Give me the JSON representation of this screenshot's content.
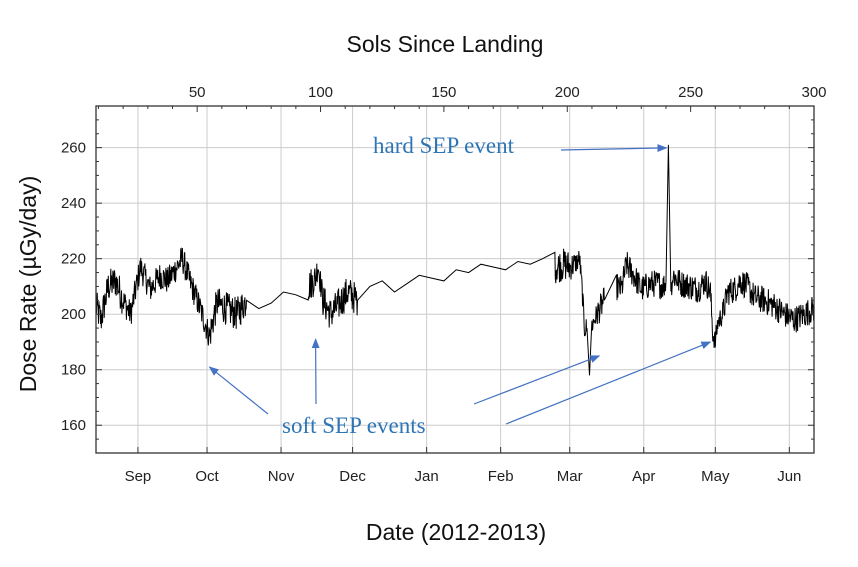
{
  "chart_data": {
    "type": "line",
    "title": "",
    "top_axis_label": "Sols Since Landing",
    "xlabel": "Date (2012-2013)",
    "ylabel": "Dose Rate (µGy/day)",
    "sol_range": [
      9,
      300
    ],
    "ylim": [
      150,
      275
    ],
    "y_ticks": [
      160,
      180,
      200,
      220,
      240,
      260
    ],
    "sol_ticks": [
      50,
      100,
      150,
      200,
      250,
      300
    ],
    "month_labels": [
      {
        "label": "Sep",
        "sol": 26
      },
      {
        "label": "Oct",
        "sol": 54
      },
      {
        "label": "Nov",
        "sol": 84
      },
      {
        "label": "Dec",
        "sol": 113
      },
      {
        "label": "Jan",
        "sol": 143
      },
      {
        "label": "Feb",
        "sol": 173
      },
      {
        "label": "Mar",
        "sol": 201
      },
      {
        "label": "Apr",
        "sol": 231
      },
      {
        "label": "May",
        "sol": 260
      },
      {
        "label": "Jun",
        "sol": 290
      }
    ],
    "grid": true,
    "series": [
      {
        "sol": [
          9,
          11,
          14,
          17,
          20,
          23,
          27,
          31,
          35,
          38,
          41,
          44,
          47,
          50,
          52,
          55,
          58,
          62,
          66,
          70,
          75,
          80,
          85,
          90,
          95,
          98,
          99,
          101,
          104,
          107,
          111,
          115,
          120,
          125,
          130,
          135,
          140,
          145,
          150,
          155,
          160,
          165,
          170,
          175,
          180,
          185,
          190,
          195,
          199,
          201,
          203,
          204,
          205,
          206,
          207,
          208,
          209,
          210,
          212,
          215,
          220,
          222,
          224,
          227,
          230,
          234,
          237,
          239,
          240,
          241,
          242,
          243,
          246,
          250,
          253,
          256,
          258,
          259,
          260,
          261,
          263,
          265,
          268,
          270,
          273,
          276,
          280,
          284,
          288,
          292,
          296,
          300
        ],
        "dose": [
          203,
          198,
          210,
          212,
          205,
          200,
          217,
          209,
          214,
          212,
          216,
          220,
          212,
          205,
          200,
          192,
          204,
          202,
          200,
          205,
          202,
          204,
          208,
          207,
          210,
          213,
          218,
          205,
          200,
          203,
          208,
          205,
          210,
          212,
          208,
          211,
          214,
          213,
          212,
          216,
          215,
          218,
          217,
          216,
          219,
          218,
          220,
          217,
          218,
          217,
          218,
          219,
          220,
          209,
          195,
          195,
          178,
          196,
          200,
          205,
          210,
          209,
          218,
          214,
          209,
          211,
          211,
          210,
          212,
          261,
          209,
          214,
          211,
          210,
          209,
          212,
          208,
          193,
          190,
          197,
          200,
          208,
          209,
          212,
          210,
          206,
          205,
          203,
          200,
          198,
          200,
          202
        ],
        "noise": [
          6,
          6,
          6,
          6,
          5,
          5,
          5,
          5,
          5,
          5,
          5,
          5,
          5,
          5,
          5,
          6,
          6,
          6,
          6,
          6,
          6,
          6,
          6,
          6,
          6,
          5,
          5,
          6,
          6,
          6,
          6,
          6,
          6,
          6,
          6,
          6,
          6,
          6,
          6,
          6,
          6,
          6,
          6,
          6,
          6,
          6,
          6,
          6,
          6,
          5,
          4,
          4,
          4,
          4,
          4,
          4,
          0,
          4,
          5,
          5,
          5,
          5,
          5,
          5,
          5,
          5,
          5,
          5,
          4,
          0,
          4,
          5,
          5,
          5,
          5,
          5,
          5,
          4,
          4,
          4,
          5,
          5,
          5,
          5,
          5,
          5,
          5,
          5,
          5,
          5,
          5,
          5
        ]
      }
    ],
    "annotations": [
      {
        "text": "hard SEP event",
        "targets": [
          {
            "sol": 241,
            "dose": 261
          }
        ]
      },
      {
        "text": "soft SEP events",
        "targets": [
          {
            "sol": 55,
            "dose": 181
          },
          {
            "sol": 98,
            "dose": 191
          },
          {
            "sol": 213,
            "dose": 185
          },
          {
            "sol": 258,
            "dose": 190
          }
        ]
      }
    ]
  }
}
